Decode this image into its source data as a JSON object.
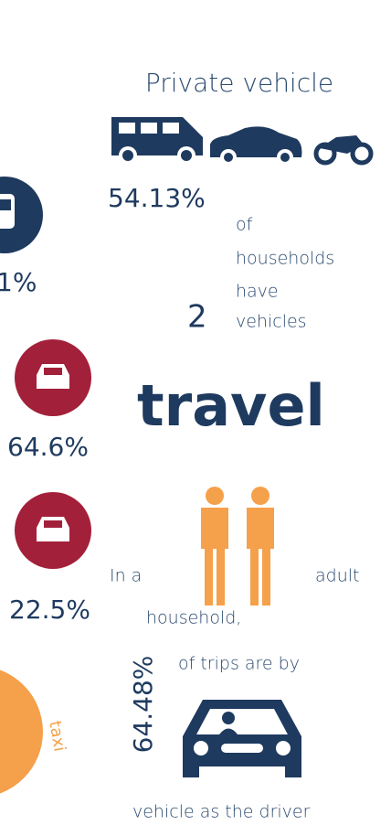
{
  "header": {
    "title": "Private vehicle"
  },
  "ownership": {
    "percent": "54.13%",
    "text": [
      "of",
      "households",
      "have",
      "vehicles"
    ],
    "count": "2"
  },
  "left": {
    "rail": "1%",
    "car1": "64.6%",
    "car2": "22.5%",
    "taxi": "taxi"
  },
  "headline": "travel",
  "household": {
    "before": "In a",
    "after": "adult",
    "end": "household,",
    "trips": "of trips are by",
    "percent": "64.48%",
    "footer": "vehicle as the driver"
  }
}
